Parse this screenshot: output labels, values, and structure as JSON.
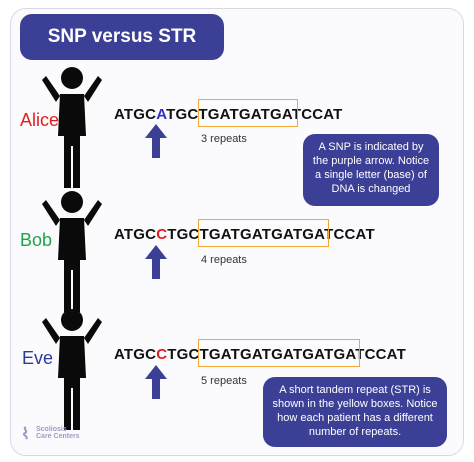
{
  "title": "SNP versus STR",
  "rows": [
    {
      "name": "Alice",
      "name_color": "#e02020",
      "seq_prefix": "ATGC",
      "seq_base": "A",
      "base_color": "#2d2dcc",
      "seq_mid": "TGC",
      "seq_repeat": "TGATGATGA",
      "seq_suffix": "TCCAT",
      "repeats_label": "3 repeats"
    },
    {
      "name": "Bob",
      "name_color": "#1fa34a",
      "seq_prefix": "ATGC",
      "seq_base": "C",
      "base_color": "#e02020",
      "seq_mid": "TGC",
      "seq_repeat": "TGATGATGATGA",
      "seq_suffix": "TCCAT",
      "repeats_label": "4 repeats"
    },
    {
      "name": "Eve",
      "name_color": "#2a3a9a",
      "seq_prefix": "ATGC",
      "seq_base": "C",
      "base_color": "#e02020",
      "seq_mid": "TGC",
      "seq_repeat": "TGATGATGATGATGA",
      "seq_suffix": "TCCAT",
      "repeats_label": "5 repeats"
    }
  ],
  "notes": {
    "snp": "A SNP is indicated by the purple arrow. Notice a single letter (base) of DNA is changed",
    "str": "A short tandem repeat (STR) is shown in the yellow boxes. Notice how each patient has a different number of repeats."
  },
  "logo": {
    "line1": "Scoliosis",
    "line2": "Care Centers"
  },
  "colors": {
    "accent": "#3b3f96",
    "box": "#f3a738",
    "figure": "#0a0a0a"
  }
}
